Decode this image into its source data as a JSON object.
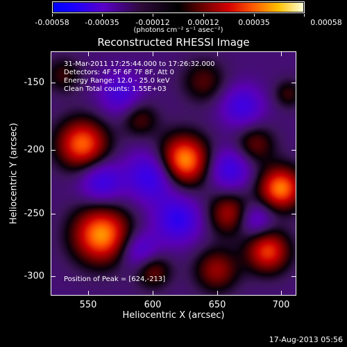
{
  "colorbar": {
    "tick_labels": [
      "-0.00058",
      "-0.00035",
      "-0.00012",
      "0.00012",
      "0.00035",
      "0.00058"
    ],
    "units": "(photons cm⁻² s⁻¹ asec⁻²)"
  },
  "plot": {
    "title": "Reconstructed RHESSI Image",
    "annotations": {
      "time_range": "31-Mar-2011 17:25:44.000 to 17:26:32.000",
      "detectors": "Detectors: 4F 5F 6F 7F 8F, Att 0",
      "energy_range": "Energy Range: 12.0 - 25.0 keV",
      "clean_counts": "Clean     Total counts: 1.55E+03",
      "peak": "Position of Peak = [624,-213]"
    },
    "xlabel": "Heliocentric X (arcsec)",
    "ylabel": "Heliocentric Y (arcsec)",
    "x_tick_labels": [
      "550",
      "600",
      "650",
      "700"
    ],
    "y_tick_labels": [
      "-150",
      "-200",
      "-250",
      "-300"
    ]
  },
  "footer": {
    "date": "17-Aug-2013 05:56"
  },
  "chart_data": {
    "type": "heatmap",
    "title": "Reconstructed RHESSI Image",
    "xlabel": "Heliocentric X (arcsec)",
    "ylabel": "Heliocentric Y (arcsec)",
    "xlim": [
      521,
      712
    ],
    "ylim": [
      -320,
      -127
    ],
    "colorbar_range": [
      -0.00058,
      0.00058
    ],
    "peak": [
      624,
      -213
    ],
    "bright_sources": [
      {
        "x": 624,
        "y": -213,
        "amplitude": 1.0,
        "width": 14
      },
      {
        "x": 560,
        "y": -272,
        "amplitude": 0.95,
        "width": 16
      },
      {
        "x": 545,
        "y": -200,
        "amplitude": 0.85,
        "width": 14
      },
      {
        "x": 700,
        "y": -235,
        "amplitude": 0.9,
        "width": 12
      },
      {
        "x": 690,
        "y": -285,
        "amplitude": 0.75,
        "width": 12
      },
      {
        "x": 660,
        "y": -255,
        "amplitude": 0.55,
        "width": 12
      },
      {
        "x": 650,
        "y": -300,
        "amplitude": 0.5,
        "width": 12
      },
      {
        "x": 600,
        "y": -300,
        "amplitude": 0.45,
        "width": 10
      },
      {
        "x": 680,
        "y": -200,
        "amplitude": 0.4,
        "width": 11
      },
      {
        "x": 590,
        "y": -180,
        "amplitude": 0.35,
        "width": 10
      },
      {
        "x": 640,
        "y": -150,
        "amplitude": 0.35,
        "width": 12
      },
      {
        "x": 530,
        "y": -145,
        "amplitude": 0.3,
        "width": 10
      },
      {
        "x": 706,
        "y": -160,
        "amplitude": 0.3,
        "width": 8
      }
    ],
    "dark_regions": [
      {
        "x": 600,
        "y": -225,
        "amplitude": -0.6,
        "width": 14
      },
      {
        "x": 560,
        "y": -230,
        "amplitude": -0.5,
        "width": 12
      },
      {
        "x": 620,
        "y": -260,
        "amplitude": -0.55,
        "width": 13
      },
      {
        "x": 660,
        "y": -220,
        "amplitude": -0.5,
        "width": 12
      },
      {
        "x": 575,
        "y": -160,
        "amplitude": -0.4,
        "width": 12
      },
      {
        "x": 670,
        "y": -170,
        "amplitude": -0.45,
        "width": 12
      },
      {
        "x": 590,
        "y": -285,
        "amplitude": -0.45,
        "width": 11
      },
      {
        "x": 680,
        "y": -260,
        "amplitude": -0.4,
        "width": 10
      }
    ]
  }
}
